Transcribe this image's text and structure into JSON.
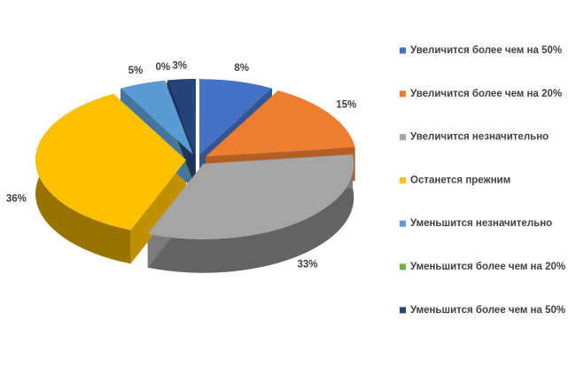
{
  "chart_data": {
    "type": "pie",
    "categories": [
      "Увеличится более чем на 50%",
      "Увеличится более чем на 20%",
      "Увеличится незначительно",
      "Останется прежним",
      "Уменьшится незначительно",
      "Уменьшится более чем на 20%",
      "Уменьшится более чем на 50%"
    ],
    "values": [
      8,
      15,
      33,
      36,
      5,
      0,
      3
    ],
    "value_labels": [
      "8%",
      "15%",
      "33%",
      "36%",
      "5%",
      "0%",
      "3%"
    ],
    "colors": [
      "#4472c4",
      "#ed7d31",
      "#a5a5a5",
      "#ffc000",
      "#5b9bd5",
      "#70ad47",
      "#264478"
    ],
    "legend": "right"
  }
}
